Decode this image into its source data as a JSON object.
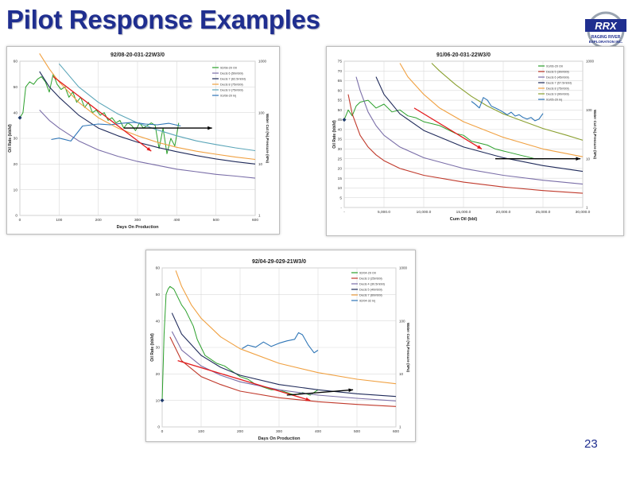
{
  "slide": {
    "title": "Pilot Response Examples",
    "page_number": "23"
  },
  "logo": {
    "name": "RRX",
    "sub1": "RAGING RIVER",
    "sub2": "EXPLORATION INC."
  },
  "colors": {
    "title": "#1f2e8f",
    "oil": "#2ca02c",
    "water_cut": "#2e75b6",
    "decline_navy": "#1f2a5a",
    "decline_purple": "#7a6ea8",
    "decline_orange": "#f0a040",
    "decline_teal": "#5aa5b8",
    "decline_red": "#c0392b",
    "decline_olive": "#8aa030",
    "arrow_red": "#e31a1c",
    "arrow_black": "#000000"
  },
  "chart_data": [
    {
      "type": "line",
      "title": "92/08-20-031-22W3/0",
      "xlabel": "Days On Production",
      "ylabel": "Oil Rate (bbl/d)",
      "y2label": "Water Cut (%),Pressure (kPa)",
      "xlim": [
        0,
        600
      ],
      "ylim": [
        0,
        60
      ],
      "y2lim": [
        1,
        1000
      ],
      "y2_scale": "log",
      "xticks": [
        "0",
        "100",
        "200",
        "300",
        "400",
        "500",
        "600"
      ],
      "yticks": [
        "0",
        "10",
        "20",
        "30",
        "40",
        "50",
        "60"
      ],
      "y2ticks": [
        "1",
        "10",
        "100",
        "1000"
      ],
      "legend": [
        "92/08-20 Oil",
        "Decls 6 (50mbbl)",
        "Decls 7 (62.5mbbl)",
        "Decls 8 (75mbbl)",
        "Decls 9 (75mbbl)",
        "91/08-20 Inj"
      ],
      "legend_position": "top-right",
      "series": [
        {
          "name": "92/08-20 Oil",
          "color": "#2ca02c",
          "axis": "left",
          "x": [
            0,
            8,
            15,
            25,
            35,
            45,
            55,
            65,
            75,
            85,
            95,
            105,
            115,
            125,
            135,
            145,
            155,
            165,
            175,
            185,
            195,
            205,
            215,
            225,
            235,
            245,
            255,
            265,
            275,
            285,
            295,
            305,
            315,
            325,
            335,
            345,
            355,
            365,
            375,
            385,
            395,
            405
          ],
          "y": [
            38,
            40,
            50,
            52,
            51,
            53,
            54,
            52,
            48,
            55,
            51,
            49,
            50,
            46,
            48,
            44,
            46,
            42,
            44,
            40,
            41,
            39,
            40,
            37,
            38,
            36,
            37,
            34,
            36,
            35,
            33,
            36,
            34,
            35,
            36,
            35,
            26,
            34,
            24,
            30,
            27,
            36
          ]
        },
        {
          "name": "Decls 6 (50mbbl)",
          "color": "#7a6ea8",
          "axis": "left",
          "x": [
            50,
            75,
            100,
            150,
            200,
            250,
            300,
            350,
            400,
            450,
            500,
            550,
            600
          ],
          "y": [
            41,
            37,
            34,
            29,
            25.5,
            23,
            21,
            19.5,
            18,
            17,
            16,
            15.3,
            14.5
          ]
        },
        {
          "name": "Decls 7 (62.5mbbl)",
          "color": "#1f2a5a",
          "axis": "left",
          "x": [
            50,
            75,
            100,
            150,
            200,
            250,
            300,
            350,
            400,
            450,
            500,
            550,
            600
          ],
          "y": [
            56,
            50,
            46,
            39,
            34,
            31,
            28.5,
            26.5,
            24.8,
            23.3,
            22,
            20.9,
            20
          ]
        },
        {
          "name": "Decls 8 (75mbbl)",
          "color": "#f0a040",
          "axis": "left",
          "x": [
            50,
            75,
            100,
            150,
            200,
            250,
            300,
            350,
            400,
            450,
            500,
            550,
            600
          ],
          "y": [
            63,
            57,
            52,
            44,
            38,
            34,
            31,
            28.5,
            26.5,
            25,
            23.8,
            22.7,
            21.8
          ]
        },
        {
          "name": "Decls 9 (75mbbl)",
          "color": "#5aa5b8",
          "axis": "left",
          "x": [
            100,
            150,
            200,
            250,
            300,
            350,
            400,
            450,
            500,
            550,
            600
          ],
          "y": [
            59,
            50,
            44,
            39.5,
            36,
            33.3,
            31,
            29,
            27.6,
            26.3,
            25.2
          ]
        },
        {
          "name": "91/08-20 Inj",
          "color": "#2e75b6",
          "axis": "right",
          "x": [
            80,
            100,
            130,
            160,
            200,
            230,
            260,
            290,
            320,
            350,
            380,
            410
          ],
          "y": [
            30,
            32,
            28,
            55,
            60,
            58,
            62,
            65,
            60,
            58,
            62,
            55
          ]
        }
      ],
      "annotations": [
        {
          "type": "arrow",
          "color": "#e31a1c",
          "from": [
            85,
            54
          ],
          "to": [
            335,
            25
          ]
        },
        {
          "type": "arrow",
          "color": "#000000",
          "from": [
            265,
            34
          ],
          "to": [
            490,
            34
          ]
        }
      ]
    },
    {
      "type": "line",
      "title": "91/06-20-031-22W3/0",
      "xlabel": "Cum Oil (bbl)",
      "ylabel": "Oil Rate (bbl/d)",
      "y2label": "Water Cut (%),Pressure (kPa)",
      "xlim": [
        0,
        30000
      ],
      "ylim": [
        0,
        75
      ],
      "y2lim": [
        1,
        1000
      ],
      "y2_scale": "log",
      "xticks": [
        "-",
        "5,000.0",
        "10,000.0",
        "15,000.0",
        "20,000.0",
        "25,000.0",
        "30,000.0"
      ],
      "yticks": [
        "-",
        "5",
        "10",
        "15",
        "20",
        "25",
        "30",
        "35",
        "40",
        "45",
        "50",
        "55",
        "60",
        "65",
        "70",
        "75"
      ],
      "y2ticks": [
        "1",
        "10",
        "100",
        "1000"
      ],
      "legend": [
        "91/06-20 Oil",
        "Decls 5 (30mbbl)",
        "Decls 6 (45mbbl)",
        "Decls 7 (57.5mbbl)",
        "Decls 8 (75mbbl)",
        "Decls 9 (90mbbl)",
        "91/05-20 Inj"
      ],
      "legend_position": "top-right",
      "series": [
        {
          "name": "91/06-20 Oil",
          "color": "#2ca02c",
          "axis": "left",
          "x": [
            0,
            500,
            1000,
            1500,
            2000,
            3000,
            4000,
            5000,
            6000,
            7000,
            8000,
            9000,
            10000,
            11000,
            12000,
            13000,
            14000,
            15000,
            16000,
            17000,
            18000,
            19000,
            20000,
            21000,
            22000,
            23000,
            24000,
            25000
          ],
          "y": [
            45,
            50,
            47,
            52,
            54,
            55,
            51,
            53,
            49,
            50,
            47,
            46,
            44,
            43,
            42,
            40,
            38,
            37,
            34,
            33,
            32,
            30,
            29,
            28,
            27,
            26,
            25,
            25
          ]
        },
        {
          "name": "Decls 5 (30mbbl)",
          "color": "#c0392b",
          "axis": "left",
          "x": [
            500,
            1000,
            2000,
            3000,
            4000,
            5000,
            7000,
            10000,
            15000,
            20000,
            25000,
            30000
          ],
          "y": [
            58,
            48,
            37,
            31,
            27,
            24,
            20,
            16.5,
            13,
            10.5,
            8.7,
            7.3
          ]
        },
        {
          "name": "Decls 6 (45mbbl)",
          "color": "#7a6ea8",
          "axis": "left",
          "x": [
            1500,
            2000,
            3000,
            4000,
            5000,
            7000,
            10000,
            15000,
            20000,
            25000,
            30000
          ],
          "y": [
            67,
            60,
            49,
            42,
            37,
            31,
            25.5,
            20,
            16.5,
            14,
            12
          ]
        },
        {
          "name": "Decls 7 (57.5mbbl)",
          "color": "#1f2a5a",
          "axis": "left",
          "x": [
            4000,
            5000,
            7000,
            10000,
            15000,
            20000,
            25000,
            30000
          ],
          "y": [
            67,
            58,
            48,
            39.5,
            31,
            25.5,
            21.5,
            18.5
          ]
        },
        {
          "name": "Decls 8 (75mbbl)",
          "color": "#f0a040",
          "axis": "left",
          "x": [
            7000,
            8000,
            10000,
            12000,
            15000,
            20000,
            25000,
            30000
          ],
          "y": [
            74,
            67,
            58,
            51,
            44,
            36,
            30,
            26
          ]
        },
        {
          "name": "Decls 9 (90mbbl)",
          "color": "#8aa030",
          "axis": "left",
          "x": [
            11000,
            12000,
            14000,
            16000,
            18000,
            20000,
            22000,
            25000,
            28000,
            30000
          ],
          "y": [
            74,
            70,
            63,
            57,
            52,
            48,
            45,
            40.5,
            37,
            34.5
          ]
        },
        {
          "name": "91/05-20 Inj",
          "color": "#2e75b6",
          "axis": "right",
          "x": [
            16000,
            16500,
            17000,
            17500,
            18000,
            18500,
            19000,
            19500,
            20000,
            20500,
            21000,
            21500,
            22000,
            22500,
            23000,
            23500,
            24000,
            24500,
            25000
          ],
          "y": [
            150,
            130,
            110,
            180,
            160,
            120,
            110,
            100,
            90,
            80,
            90,
            75,
            80,
            70,
            65,
            70,
            60,
            65,
            85
          ]
        }
      ],
      "annotations": [
        {
          "type": "arrow",
          "color": "#e31a1c",
          "from": [
            8800,
            51
          ],
          "to": [
            17300,
            30
          ]
        },
        {
          "type": "arrow",
          "color": "#000000",
          "from": [
            19000,
            25
          ],
          "to": [
            29700,
            25
          ]
        }
      ]
    },
    {
      "type": "line",
      "title": "92/04-29-029-21W3/0",
      "xlabel": "Days On Production",
      "ylabel": "Oil Rate (bbl/d)",
      "y2label": "Water Cut (%),Pressure (kPa)",
      "xlim": [
        0,
        600
      ],
      "ylim": [
        0,
        60
      ],
      "y2lim": [
        1,
        1000
      ],
      "y2_scale": "log",
      "xticks": [
        "0",
        "100",
        "200",
        "300",
        "400",
        "500",
        "600"
      ],
      "yticks": [
        "0",
        "10",
        "20",
        "30",
        "40",
        "50",
        "60"
      ],
      "y2ticks": [
        "1",
        "10",
        "100",
        "1000"
      ],
      "legend": [
        "92/04-29 Oil",
        "Decls 3 (25mbbl)",
        "Decls 4 (30.5mbbl)",
        "Decls 5 (40mbbl)",
        "Decls 7 (60mbbl)",
        "92/04-32 Inj"
      ],
      "legend_position": "top-right",
      "series": [
        {
          "name": "92/04-29 Oil",
          "color": "#2ca02c",
          "axis": "left",
          "x": [
            0,
            5,
            10,
            15,
            20,
            30,
            40,
            50,
            60,
            70,
            80,
            90,
            100,
            110,
            120,
            140,
            160,
            180,
            200,
            220,
            240,
            260,
            280,
            300,
            320,
            340,
            360,
            380,
            400
          ],
          "y": [
            10,
            35,
            50,
            52,
            53,
            52,
            49,
            46,
            44,
            41,
            38,
            33,
            30,
            27,
            26,
            24,
            23,
            21,
            19,
            18,
            16,
            15,
            14,
            14,
            13,
            12,
            13,
            12,
            14
          ]
        },
        {
          "name": "Decls 3 (25mbbl)",
          "color": "#c0392b",
          "axis": "left",
          "x": [
            20,
            50,
            100,
            150,
            200,
            300,
            400,
            500,
            600
          ],
          "y": [
            34,
            25,
            19,
            16,
            13.5,
            11,
            9.5,
            8.5,
            7.7
          ]
        },
        {
          "name": "Decls 4 (30.5mbbl)",
          "color": "#7a6ea8",
          "axis": "left",
          "x": [
            25,
            50,
            100,
            150,
            200,
            300,
            400,
            500,
            600
          ],
          "y": [
            36,
            29,
            23,
            19.5,
            17,
            14,
            12,
            10.8,
            9.8
          ]
        },
        {
          "name": "Decls 5 (40mbbl)",
          "color": "#1f2a5a",
          "axis": "left",
          "x": [
            25,
            50,
            100,
            150,
            200,
            300,
            400,
            500,
            600
          ],
          "y": [
            43,
            35,
            27,
            22.5,
            19.5,
            16,
            14,
            12.5,
            11.5
          ]
        },
        {
          "name": "Decls 7 (60mbbl)",
          "color": "#f0a040",
          "axis": "left",
          "x": [
            35,
            50,
            75,
            100,
            150,
            200,
            300,
            400,
            500,
            600
          ],
          "y": [
            59,
            53,
            46,
            41,
            34,
            29.5,
            24,
            20.5,
            18,
            16.3
          ]
        },
        {
          "name": "92/04-32 Inj",
          "color": "#2e75b6",
          "axis": "right",
          "x": [
            205,
            220,
            240,
            260,
            280,
            300,
            320,
            340,
            350,
            360,
            375,
            390,
            400
          ],
          "y": [
            30,
            35,
            32,
            40,
            33,
            38,
            42,
            45,
            60,
            55,
            35,
            25,
            28
          ]
        }
      ],
      "annotations": [
        {
          "type": "arrow",
          "color": "#e31a1c",
          "from": [
            40,
            25
          ],
          "to": [
            380,
            10
          ]
        },
        {
          "type": "arrow",
          "color": "#000000",
          "from": [
            320,
            12
          ],
          "to": [
            490,
            14
          ]
        }
      ]
    }
  ]
}
